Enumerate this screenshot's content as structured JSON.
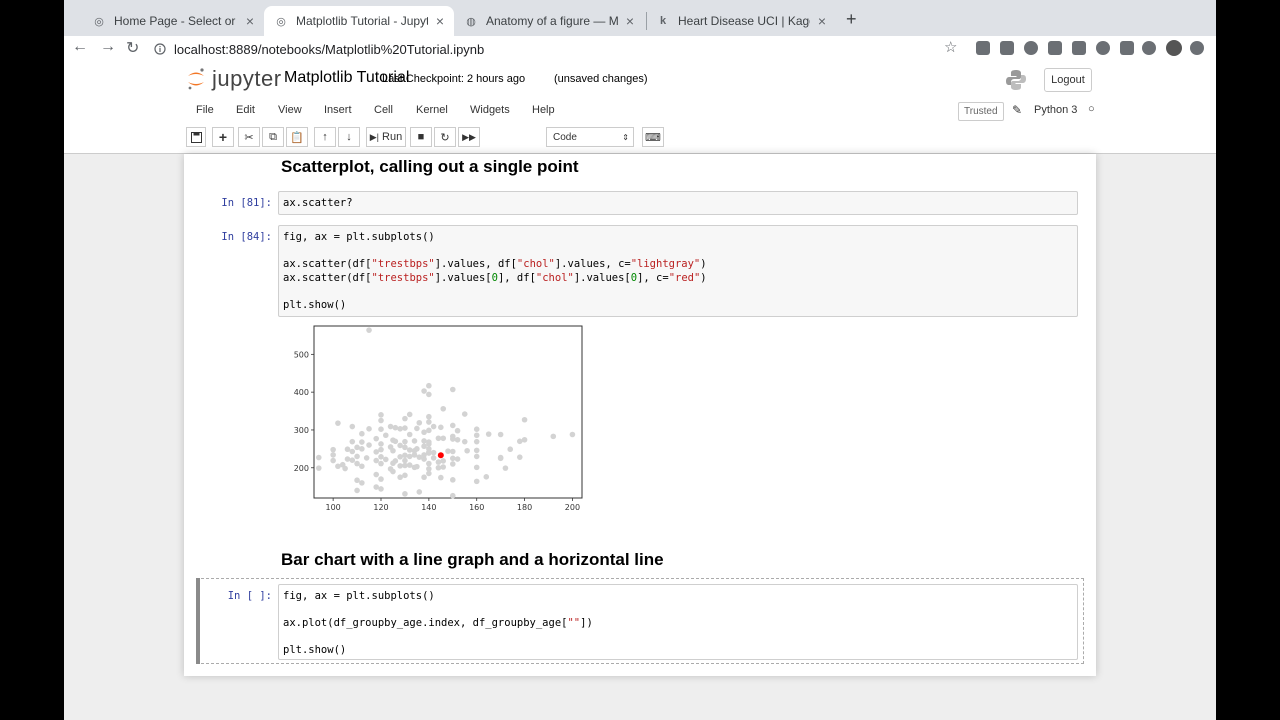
{
  "browser": {
    "tabs": [
      {
        "label": "Home Page - Select or create",
        "icon": "jupyter-favicon-icon"
      },
      {
        "label": "Matplotlib Tutorial - Jupyter N",
        "icon": "jupyter-favicon-icon"
      },
      {
        "label": "Anatomy of a figure — Matplo",
        "icon": "matplotlib-favicon-icon"
      },
      {
        "label": "Heart Disease UCI | Kaggle",
        "icon": "kaggle-favicon-icon"
      }
    ],
    "url": "localhost:8889/notebooks/Matplotlib%20Tutorial.ipynb"
  },
  "jupyter": {
    "logo_text": "jupyter",
    "notebook_title": "Matplotlib Tutorial",
    "checkpoint": "Last Checkpoint: 2 hours ago",
    "unsaved": "(unsaved changes)",
    "logout": "Logout",
    "menu": [
      "File",
      "Edit",
      "View",
      "Insert",
      "Cell",
      "Kernel",
      "Widgets",
      "Help"
    ],
    "trusted": "Trusted",
    "kernel": "Python 3",
    "run_label": "Run",
    "cell_type": "Code"
  },
  "notebook": {
    "heading1": "Scatterplot, calling out a single point",
    "heading2": "Bar chart with a line graph and a horizontal line",
    "cell1": {
      "prompt": "In [81]:",
      "line1": "ax.scatter?"
    },
    "cell2": {
      "prompt": "In [84]:",
      "line1": "fig, ax = plt.subplots()",
      "line2a": "ax.scatter(df[",
      "line2s1": "\"trestbps\"",
      "line2b": "].values, df[",
      "line2s2": "\"chol\"",
      "line2c": "].values, c=",
      "line2s3": "\"lightgray\"",
      "line2d": ")",
      "line3a": "ax.scatter(df[",
      "line3s1": "\"trestbps\"",
      "line3b": "].values[",
      "line3n1": "0",
      "line3c": "], df[",
      "line3s2": "\"chol\"",
      "line3d": "].values[",
      "line3n2": "0",
      "line3e": "], c=",
      "line3s3": "\"red\"",
      "line3f": ")",
      "line4": "plt.show()"
    },
    "cell3": {
      "prompt": "In [ ]:",
      "line1": "fig, ax = plt.subplots()",
      "line2a": "ax.plot(df_groupby_age.index, df_groupby_age[",
      "line2s": "\"\"",
      "line2b": "])",
      "line3": "plt.show()"
    }
  },
  "chart_data": {
    "type": "scatter",
    "xlim": [
      92,
      204
    ],
    "ylim": [
      120,
      575
    ],
    "x_ticks": [
      100,
      120,
      140,
      160,
      180,
      200
    ],
    "y_ticks": [
      200,
      300,
      400,
      500
    ],
    "colors": {
      "base": "#d3d3d3",
      "highlight": "#ff0000"
    },
    "highlight_point": {
      "x": 145,
      "y": 233
    },
    "points": [
      [
        94,
        199
      ],
      [
        94,
        227
      ],
      [
        100,
        234
      ],
      [
        100,
        248
      ],
      [
        102,
        204
      ],
      [
        102,
        318
      ],
      [
        104,
        208
      ],
      [
        105,
        198
      ],
      [
        106,
        223
      ],
      [
        108,
        243
      ],
      [
        108,
        309
      ],
      [
        108,
        269
      ],
      [
        110,
        211
      ],
      [
        110,
        254
      ],
      [
        110,
        230
      ],
      [
        110,
        167
      ],
      [
        112,
        204
      ],
      [
        112,
        250
      ],
      [
        112,
        268
      ],
      [
        112,
        290
      ],
      [
        114,
        226
      ],
      [
        115,
        260
      ],
      [
        115,
        564
      ],
      [
        118,
        182
      ],
      [
        118,
        219
      ],
      [
        118,
        242
      ],
      [
        118,
        277
      ],
      [
        120,
        170
      ],
      [
        120,
        211
      ],
      [
        120,
        229
      ],
      [
        120,
        248
      ],
      [
        120,
        263
      ],
      [
        120,
        302
      ],
      [
        120,
        340
      ],
      [
        122,
        222
      ],
      [
        122,
        286
      ],
      [
        124,
        197
      ],
      [
        124,
        255
      ],
      [
        125,
        212
      ],
      [
        125,
        245
      ],
      [
        125,
        273
      ],
      [
        126,
        218
      ],
      [
        126,
        306
      ],
      [
        128,
        205
      ],
      [
        128,
        229
      ],
      [
        128,
        259
      ],
      [
        128,
        303
      ],
      [
        130,
        180
      ],
      [
        130,
        206
      ],
      [
        130,
        219
      ],
      [
        130,
        233
      ],
      [
        130,
        254
      ],
      [
        130,
        269
      ],
      [
        130,
        305
      ],
      [
        130,
        330
      ],
      [
        132,
        207
      ],
      [
        132,
        247
      ],
      [
        132,
        288
      ],
      [
        132,
        341
      ],
      [
        134,
        201
      ],
      [
        134,
        234
      ],
      [
        134,
        271
      ],
      [
        135,
        203
      ],
      [
        135,
        250
      ],
      [
        135,
        304
      ],
      [
        136,
        228
      ],
      [
        138,
        175
      ],
      [
        138,
        223
      ],
      [
        138,
        234
      ],
      [
        138,
        257
      ],
      [
        138,
        271
      ],
      [
        138,
        294
      ],
      [
        140,
        185
      ],
      [
        140,
        197
      ],
      [
        140,
        211
      ],
      [
        140,
        239
      ],
      [
        140,
        241
      ],
      [
        140,
        263
      ],
      [
        140,
        268
      ],
      [
        140,
        299
      ],
      [
        140,
        321
      ],
      [
        140,
        335
      ],
      [
        140,
        394
      ],
      [
        142,
        226
      ],
      [
        142,
        309
      ],
      [
        144,
        200
      ],
      [
        144,
        278
      ],
      [
        145,
        174
      ],
      [
        145,
        307
      ],
      [
        146,
        202
      ],
      [
        146,
        278
      ],
      [
        148,
        244
      ],
      [
        150,
        126
      ],
      [
        150,
        168
      ],
      [
        150,
        225
      ],
      [
        150,
        243
      ],
      [
        150,
        276
      ],
      [
        150,
        283
      ],
      [
        150,
        407
      ],
      [
        152,
        223
      ],
      [
        152,
        274
      ],
      [
        152,
        298
      ],
      [
        155,
        269
      ],
      [
        156,
        245
      ],
      [
        160,
        164
      ],
      [
        160,
        201
      ],
      [
        160,
        246
      ],
      [
        160,
        269
      ],
      [
        160,
        286
      ],
      [
        160,
        302
      ],
      [
        164,
        176
      ],
      [
        165,
        289
      ],
      [
        170,
        225
      ],
      [
        170,
        227
      ],
      [
        170,
        288
      ],
      [
        172,
        199
      ],
      [
        174,
        249
      ],
      [
        178,
        270
      ],
      [
        180,
        274
      ],
      [
        180,
        327
      ],
      [
        192,
        283
      ],
      [
        200,
        288
      ],
      [
        178,
        228
      ],
      [
        128,
        175
      ],
      [
        136,
        136
      ],
      [
        120,
        144
      ],
      [
        118,
        149
      ],
      [
        110,
        140
      ],
      [
        112,
        160
      ],
      [
        130,
        131
      ],
      [
        125,
        190
      ],
      [
        146,
        218
      ],
      [
        132,
        230
      ],
      [
        134,
        245
      ],
      [
        126,
        270
      ],
      [
        124,
        309
      ],
      [
        136,
        319
      ],
      [
        138,
        403
      ],
      [
        140,
        417
      ],
      [
        146,
        356
      ],
      [
        106,
        249
      ],
      [
        108,
        220
      ],
      [
        100,
        219
      ],
      [
        115,
        303
      ],
      [
        120,
        325
      ],
      [
        150,
        312
      ],
      [
        155,
        342
      ],
      [
        140,
        250
      ],
      [
        142,
        240
      ],
      [
        144,
        215
      ],
      [
        150,
        210
      ],
      [
        160,
        230
      ]
    ]
  }
}
